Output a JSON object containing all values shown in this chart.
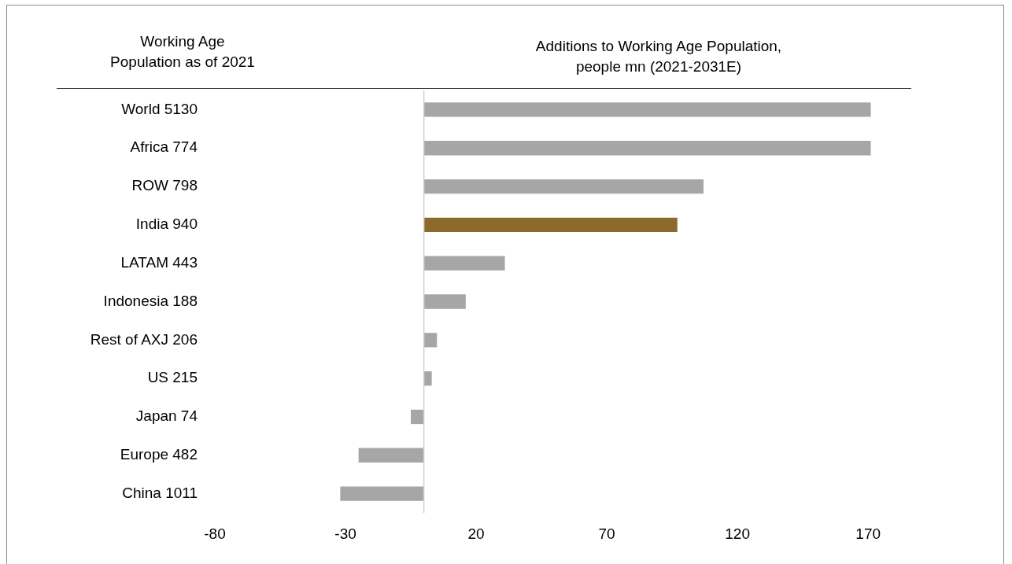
{
  "chart_data": {
    "type": "bar",
    "orientation": "horizontal",
    "title": "Additions to Working Age Population,\npeople mn (2021-2031E)",
    "ylabel": "Working Age\nPopulation as of 2021",
    "categories": [
      "World 5130",
      "Africa 774",
      "ROW 798",
      "India 940",
      "LATAM 443",
      "Indonesia 188",
      "Rest of AXJ 206",
      "US 215",
      "Japan 74",
      "Europe 482",
      "China 1011"
    ],
    "values": [
      171,
      171,
      107,
      97,
      31,
      16,
      5,
      3,
      -5,
      -25,
      -32
    ],
    "colors": [
      "#a6a6a6",
      "#a6a6a6",
      "#a6a6a6",
      "#8c6a2c",
      "#a6a6a6",
      "#a6a6a6",
      "#a6a6a6",
      "#a6a6a6",
      "#a6a6a6",
      "#a6a6a6",
      "#a6a6a6"
    ],
    "xlim": [
      -80,
      185
    ],
    "xticks": [
      -80,
      -30,
      20,
      70,
      120,
      170
    ],
    "grid": false,
    "legend": false
  }
}
